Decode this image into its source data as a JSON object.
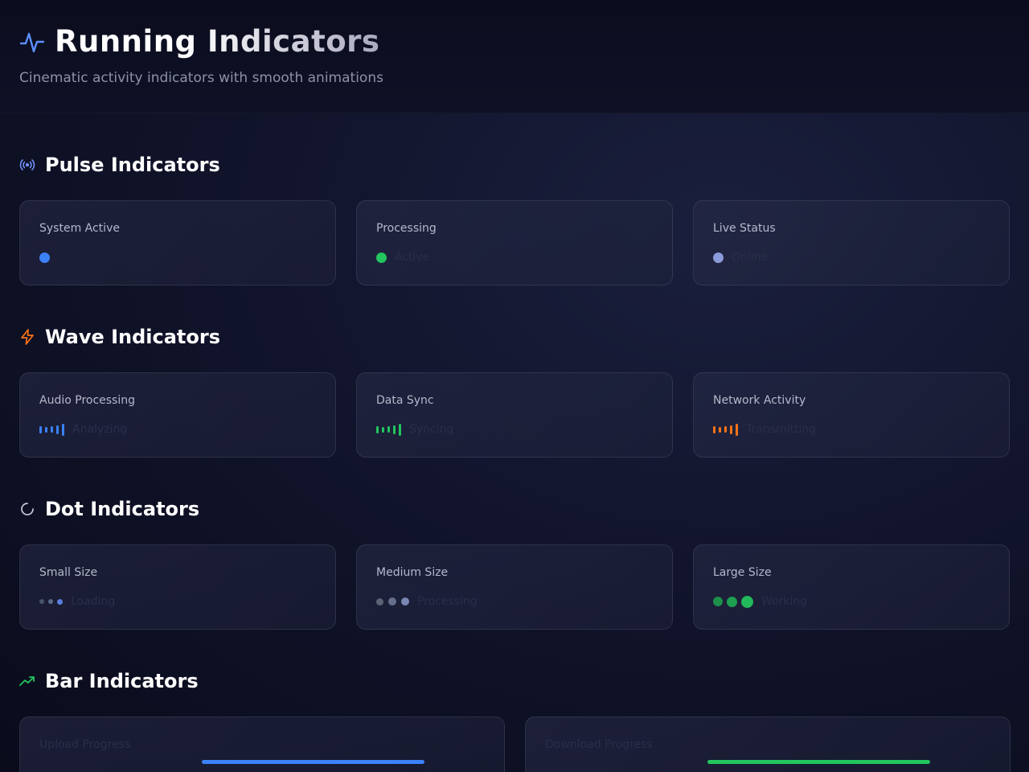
{
  "header": {
    "title": "Running Indicators",
    "subtitle": "Cinematic activity indicators with smooth animations",
    "icon": "activity-icon"
  },
  "colors": {
    "blue": "#3b82f6",
    "green": "#22c55e",
    "orange": "#f97316",
    "slate": "#64748b",
    "periwinkle": "#8b9bd9"
  },
  "sections": {
    "pulse": {
      "title": "Pulse Indicators",
      "icon": "broadcast-icon",
      "cards": [
        {
          "label": "System Active",
          "status": ""
        },
        {
          "label": "Processing",
          "status": "Active"
        },
        {
          "label": "Live Status",
          "status": "Online"
        }
      ]
    },
    "wave": {
      "title": "Wave Indicators",
      "icon": "lightning-icon",
      "cards": [
        {
          "label": "Audio Processing",
          "status": "Analyzing"
        },
        {
          "label": "Data Sync",
          "status": "Syncing"
        },
        {
          "label": "Network Activity",
          "status": "Transmitting"
        }
      ]
    },
    "dot": {
      "title": "Dot Indicators",
      "icon": "spinner-icon",
      "cards": [
        {
          "label": "Small Size",
          "status": "Loading"
        },
        {
          "label": "Medium Size",
          "status": "Processing"
        },
        {
          "label": "Large Size",
          "status": "Working"
        }
      ]
    },
    "bar": {
      "title": "Bar Indicators",
      "icon": "trending-up-icon",
      "cards": [
        {
          "label": "Upload Progress"
        },
        {
          "label": "Download Progress"
        }
      ]
    }
  }
}
